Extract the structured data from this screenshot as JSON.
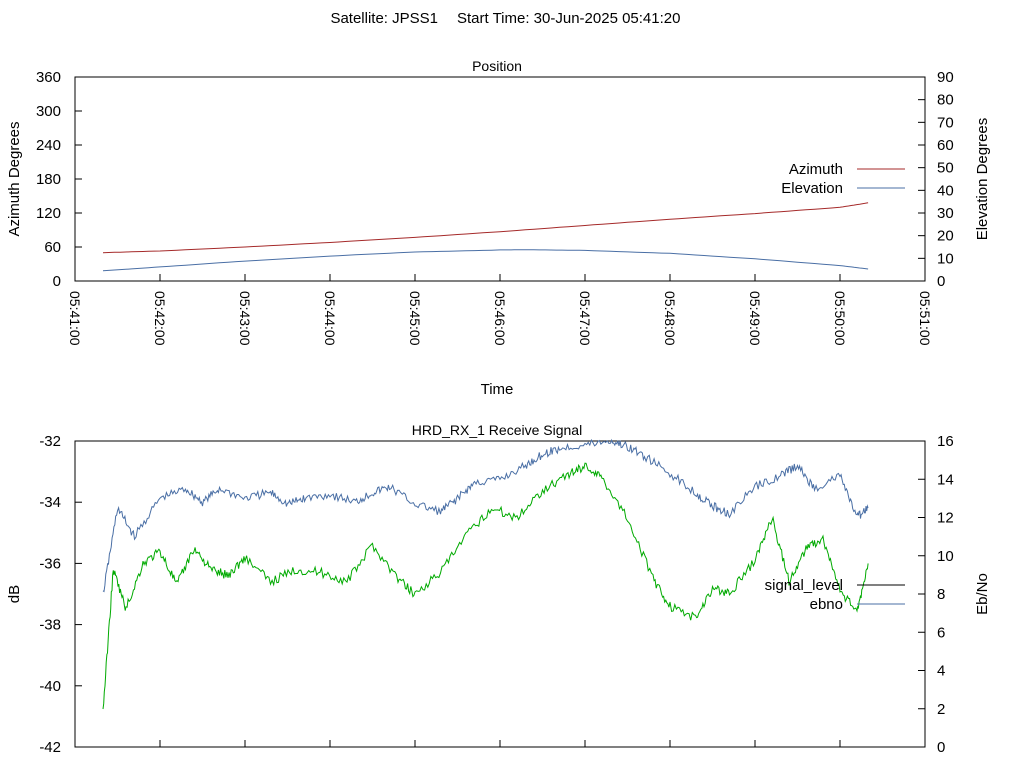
{
  "header": {
    "satellite": "Satellite: JPSS1",
    "start_time": "Start Time: 30-Jun-2025 05:41:20"
  },
  "chart_data": [
    {
      "type": "line",
      "title": "Position",
      "xlabel": "Time",
      "ylabel": "Azimuth Degrees",
      "y2label": "Elevation Degrees",
      "ylim": [
        0,
        360
      ],
      "y2lim": [
        0,
        90
      ],
      "yticks": [
        "0",
        "60",
        "120",
        "180",
        "240",
        "300",
        "360"
      ],
      "y2ticks": [
        "0",
        "10",
        "20",
        "30",
        "40",
        "50",
        "60",
        "70",
        "80",
        "90"
      ],
      "xticks": [
        "05:41:00",
        "05:42:00",
        "05:43:00",
        "05:44:00",
        "05:45:00",
        "05:46:00",
        "05:47:00",
        "05:48:00",
        "05:49:00",
        "05:50:00",
        "05:51:00"
      ],
      "xlim_minutes": [
        0,
        10
      ],
      "legend_position": "right",
      "series": [
        {
          "name": "Azimuth",
          "axis": "y1",
          "color": "#a52a2a",
          "x": [
            0.33,
            1,
            2,
            3,
            4,
            5,
            6,
            7,
            8,
            9,
            9.33
          ],
          "y": [
            50,
            53,
            60,
            68,
            77,
            87,
            98,
            109,
            119,
            130,
            138
          ]
        },
        {
          "name": "Elevation",
          "axis": "y2",
          "color": "#4a6fa5",
          "x": [
            0.33,
            1,
            2,
            3,
            4,
            5,
            5.33,
            6,
            7,
            8,
            9,
            9.33
          ],
          "y": [
            4.5,
            6.2,
            8.8,
            11,
            12.8,
            13.7,
            13.8,
            13.5,
            12.2,
            9.8,
            6.8,
            5.3
          ]
        }
      ]
    },
    {
      "type": "line",
      "title": "HRD_RX_1 Receive Signal",
      "ylabel": "dB",
      "y2label": "Eb/No",
      "ylim": [
        -42,
        -32
      ],
      "y2lim": [
        0,
        16
      ],
      "yticks": [
        "-42",
        "-40",
        "-38",
        "-36",
        "-34",
        "-32"
      ],
      "y2ticks": [
        "0",
        "2",
        "4",
        "6",
        "8",
        "10",
        "12",
        "14",
        "16"
      ],
      "xlim_minutes": [
        0,
        10
      ],
      "xtick_count": 11,
      "legend_position": "right",
      "series": [
        {
          "name": "signal_level",
          "axis": "y1",
          "color": "#000000",
          "x": [],
          "y": []
        },
        {
          "name": "ebno",
          "axis": "y2",
          "color": "#4a6fa5",
          "x": [
            0.33,
            0.5,
            0.7,
            1,
            1.3,
            1.5,
            1.7,
            2,
            2.3,
            2.5,
            2.7,
            3,
            3.3,
            3.5,
            3.7,
            4,
            4.3,
            4.5,
            4.7,
            5,
            5.3,
            5.5,
            5.7,
            6,
            6.3,
            6.5,
            6.7,
            7,
            7.3,
            7.5,
            7.7,
            8,
            8.3,
            8.5,
            8.7,
            9,
            9.2,
            9.33
          ],
          "y": [
            8,
            12.5,
            11,
            13,
            13.5,
            12.8,
            13.5,
            13,
            13.3,
            12.7,
            13,
            13.2,
            12.8,
            13.3,
            13.6,
            12.7,
            12.3,
            13,
            13.8,
            14,
            14.7,
            15.3,
            15.6,
            15.8,
            16,
            15.7,
            15.2,
            14.3,
            13.3,
            12.6,
            12.2,
            13.6,
            14.2,
            14.7,
            13.5,
            14.2,
            12,
            12.5
          ]
        },
        {
          "name": "",
          "axis": "y1",
          "color": "#00aa00",
          "x": [
            0.33,
            0.45,
            0.6,
            0.8,
            1,
            1.2,
            1.4,
            1.6,
            1.8,
            2,
            2.3,
            2.6,
            2.9,
            3.2,
            3.5,
            3.8,
            4,
            4.3,
            4.6,
            4.9,
            5.2,
            5.5,
            5.8,
            6,
            6.2,
            6.5,
            6.8,
            7,
            7.3,
            7.5,
            7.7,
            8,
            8.2,
            8.4,
            8.6,
            8.8,
            9,
            9.2,
            9.33
          ],
          "y": [
            -40.8,
            -36.2,
            -37.5,
            -36,
            -35.6,
            -36.7,
            -35.5,
            -36.2,
            -36.4,
            -35.8,
            -36.6,
            -36.2,
            -36.3,
            -36.6,
            -35.4,
            -36.5,
            -37,
            -36.3,
            -35.1,
            -34.2,
            -34.5,
            -33.6,
            -33.1,
            -32.8,
            -33.2,
            -34.5,
            -36.5,
            -37.4,
            -37.8,
            -36.8,
            -37,
            -35.9,
            -34.5,
            -36.6,
            -35.5,
            -35.2,
            -36.9,
            -37.6,
            -36
          ]
        }
      ]
    }
  ]
}
